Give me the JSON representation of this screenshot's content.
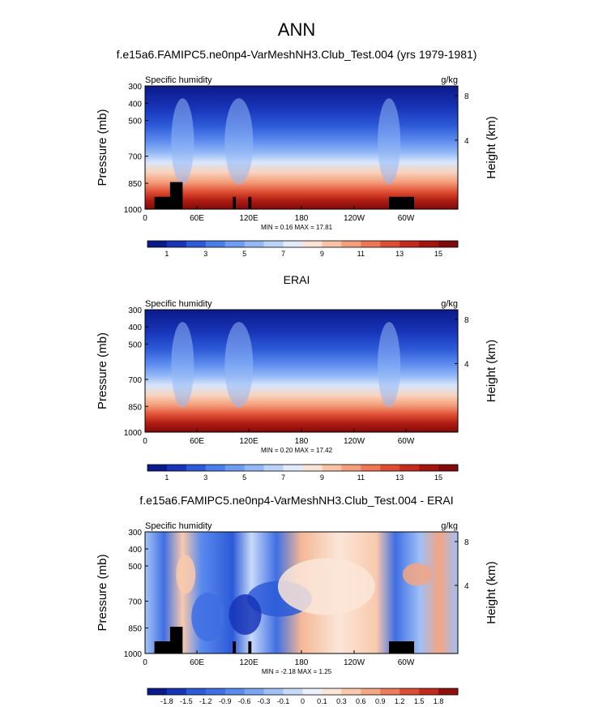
{
  "figure": {
    "title": "ANN",
    "panel_titles": [
      "f.e15a6.FAMIPC5.ne0np4-VarMeshNH3.Club_Test.004 (yrs 1979-1981)",
      "ERAI",
      "f.e15a6.FAMIPC5.ne0np4-VarMeshNH3.Club_Test.004 - ERAI"
    ]
  },
  "chart_data": [
    {
      "type": "heatmap",
      "title": "f.e15a6.FAMIPC5.ne0np4-VarMeshNH3.Club_Test.004 (yrs 1979-1981)",
      "left_label": "Specific humidity",
      "right_label": "g/kg",
      "ylabel": "Pressure (mb)",
      "y2label": "Height (km)",
      "x_ticks": [
        "0",
        "60E",
        "120E",
        "180",
        "120W",
        "60W"
      ],
      "y_ticks": [
        "300",
        "400",
        "500",
        "700",
        "850",
        "1000"
      ],
      "y2_ticks": [
        "8",
        "4"
      ],
      "ylim": [
        1000,
        300
      ],
      "min_max_text": "MIN =  0.16  MAX =  17.81",
      "min": 0.16,
      "max": 17.81,
      "colorbar_labels": [
        "1",
        "3",
        "5",
        "7",
        "9",
        "11",
        "13",
        "15"
      ],
      "colorbar_colors": [
        "#0b1a8a",
        "#1834b8",
        "#2c5ad8",
        "#4a7ee8",
        "#6d9cf0",
        "#94b8f5",
        "#bcd3f8",
        "#e1ebfb",
        "#f9e3d6",
        "#f8c3a6",
        "#f49e7b",
        "#ec7655",
        "#de4d33",
        "#c52a1c",
        "#a3140f",
        "#800a0a"
      ]
    },
    {
      "type": "heatmap",
      "title": "ERAI",
      "left_label": "Specific humidity",
      "right_label": "g/kg",
      "ylabel": "Pressure (mb)",
      "y2label": "Height (km)",
      "x_ticks": [
        "0",
        "60E",
        "120E",
        "180",
        "120W",
        "60W"
      ],
      "y_ticks": [
        "300",
        "400",
        "500",
        "700",
        "850",
        "1000"
      ],
      "y2_ticks": [
        "8",
        "4"
      ],
      "ylim": [
        1000,
        300
      ],
      "min_max_text": "MIN =  0.20  MAX =  17.42",
      "min": 0.2,
      "max": 17.42,
      "colorbar_labels": [
        "1",
        "3",
        "5",
        "7",
        "9",
        "11",
        "13",
        "15"
      ],
      "colorbar_colors": [
        "#0b1a8a",
        "#1834b8",
        "#2c5ad8",
        "#4a7ee8",
        "#6d9cf0",
        "#94b8f5",
        "#bcd3f8",
        "#e1ebfb",
        "#f9e3d6",
        "#f8c3a6",
        "#f49e7b",
        "#ec7655",
        "#de4d33",
        "#c52a1c",
        "#a3140f",
        "#800a0a"
      ]
    },
    {
      "type": "heatmap",
      "title": "f.e15a6.FAMIPC5.ne0np4-VarMeshNH3.Club_Test.004 - ERAI",
      "left_label": "Specific humidity",
      "right_label": "g/kg",
      "ylabel": "Pressure (mb)",
      "y2label": "Height (km)",
      "x_ticks": [
        "0",
        "60E",
        "120E",
        "180",
        "120W",
        "60W"
      ],
      "y_ticks": [
        "300",
        "400",
        "500",
        "700",
        "850",
        "1000"
      ],
      "y2_ticks": [
        "8",
        "4"
      ],
      "ylim": [
        1000,
        300
      ],
      "min_max_text": "MIN = -2.18  MAX =  1.25",
      "min": -2.18,
      "max": 1.25,
      "colorbar_labels": [
        "-1.8",
        "-1.5",
        "-1.2",
        "-0.9",
        "-0.6",
        "-0.3",
        "-0.1",
        "0",
        "0.1",
        "0.3",
        "0.6",
        "0.9",
        "1.2",
        "1.5",
        "1.8"
      ],
      "colorbar_colors": [
        "#0b1a8a",
        "#1834b8",
        "#2c5ad8",
        "#3f6fe3",
        "#5a8aee",
        "#7aa6f2",
        "#a0c0f6",
        "#c8dafa",
        "#eaf1fd",
        "#fbe6d8",
        "#f8c9ad",
        "#f4a582",
        "#ec7b5c",
        "#dc4d35",
        "#c02a1d",
        "#8f0f0c"
      ]
    }
  ]
}
